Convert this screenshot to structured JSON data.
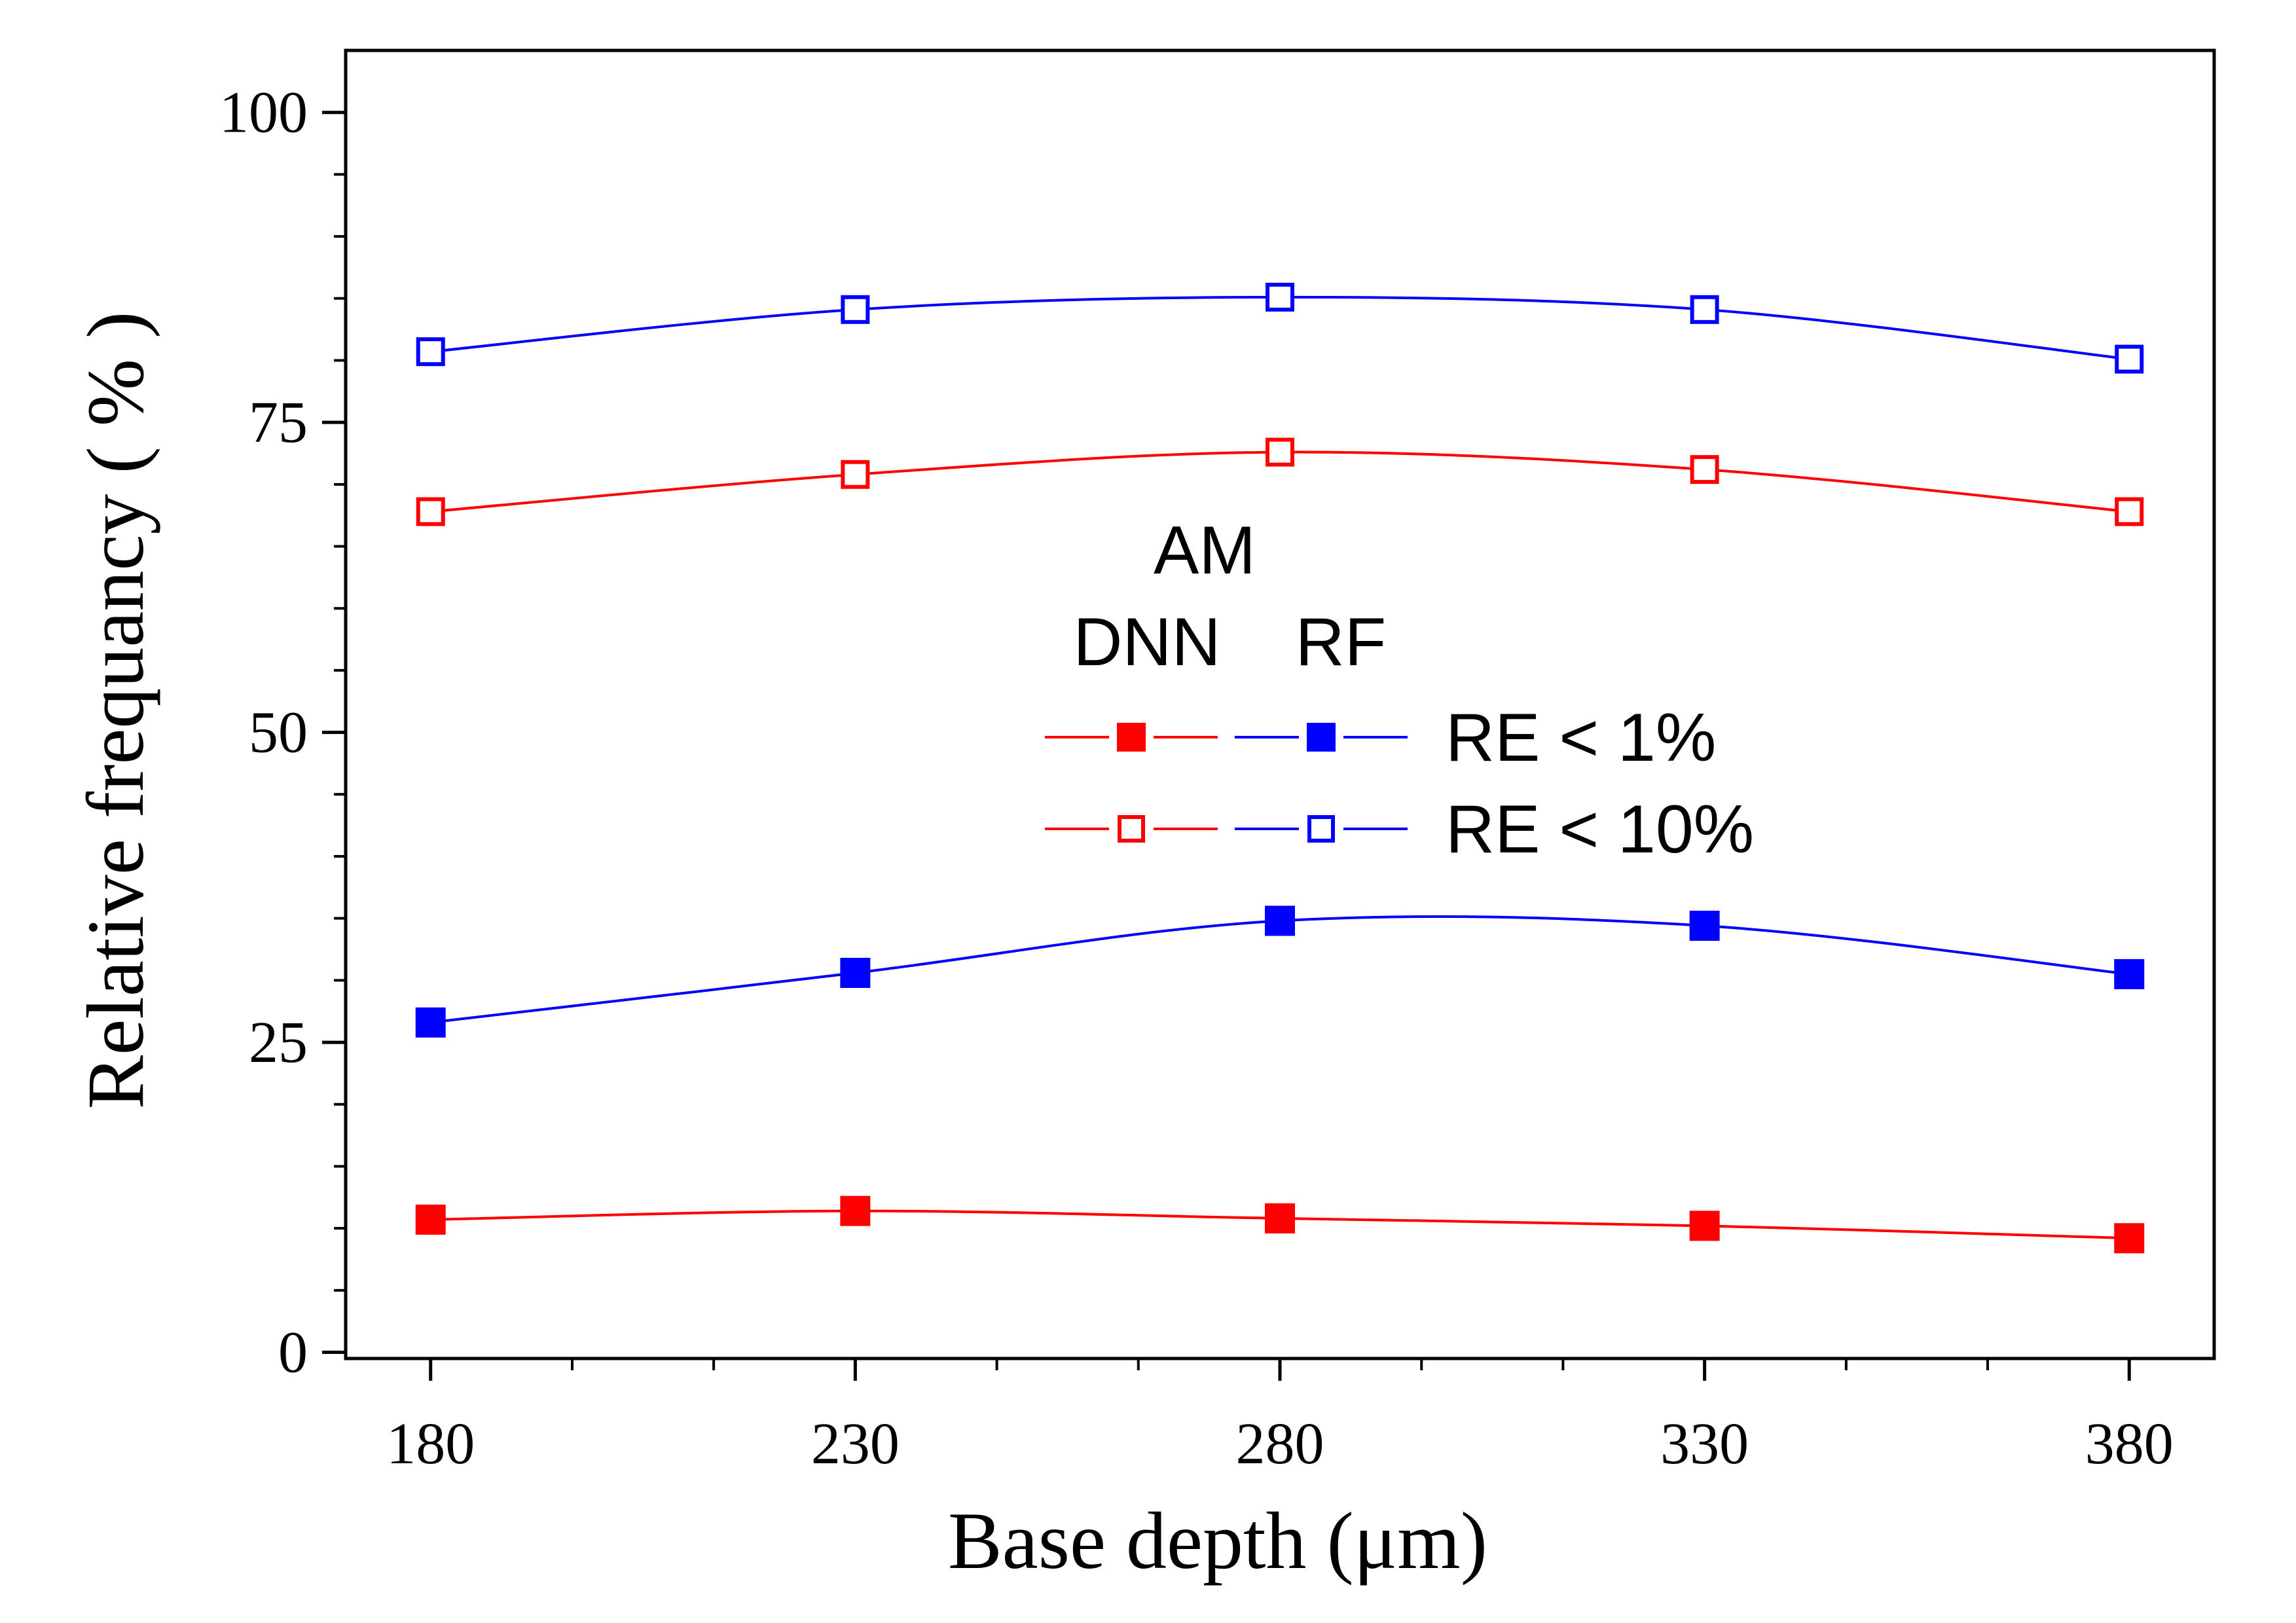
{
  "chart_data": {
    "type": "line",
    "xlabel": "Base depth (μm)",
    "ylabel": "Relative frequancy ( % )",
    "x": [
      180,
      230,
      280,
      330,
      380
    ],
    "xticks": [
      180,
      230,
      280,
      330,
      380
    ],
    "yticks": [
      0,
      25,
      50,
      75,
      100
    ],
    "xlim": [
      170,
      390
    ],
    "ylim": [
      -0.5,
      105
    ],
    "grid": false,
    "legend": {
      "placement": "center",
      "group_header": "AM",
      "column_headers": [
        "DNN",
        "RF"
      ],
      "row_labels": [
        "RE < 1%",
        "RE < 10%"
      ]
    },
    "series": [
      {
        "method": "DNN",
        "metric": "RE < 1%",
        "color": "#ff0000",
        "marker": "filled-square",
        "values": [
          10.7,
          11.4,
          10.8,
          10.2,
          9.2
        ]
      },
      {
        "method": "RF",
        "metric": "RE < 1%",
        "color": "#0000ff",
        "marker": "filled-square",
        "values": [
          26.6,
          30.6,
          34.8,
          34.4,
          30.5
        ]
      },
      {
        "method": "DNN",
        "metric": "RE < 10%",
        "color": "#ff0000",
        "marker": "open-square",
        "values": [
          67.8,
          70.8,
          72.6,
          71.2,
          67.8
        ]
      },
      {
        "method": "RF",
        "metric": "RE < 10%",
        "color": "#0000ff",
        "marker": "open-square",
        "values": [
          80.7,
          84.1,
          85.1,
          84.1,
          80.1
        ]
      }
    ]
  }
}
